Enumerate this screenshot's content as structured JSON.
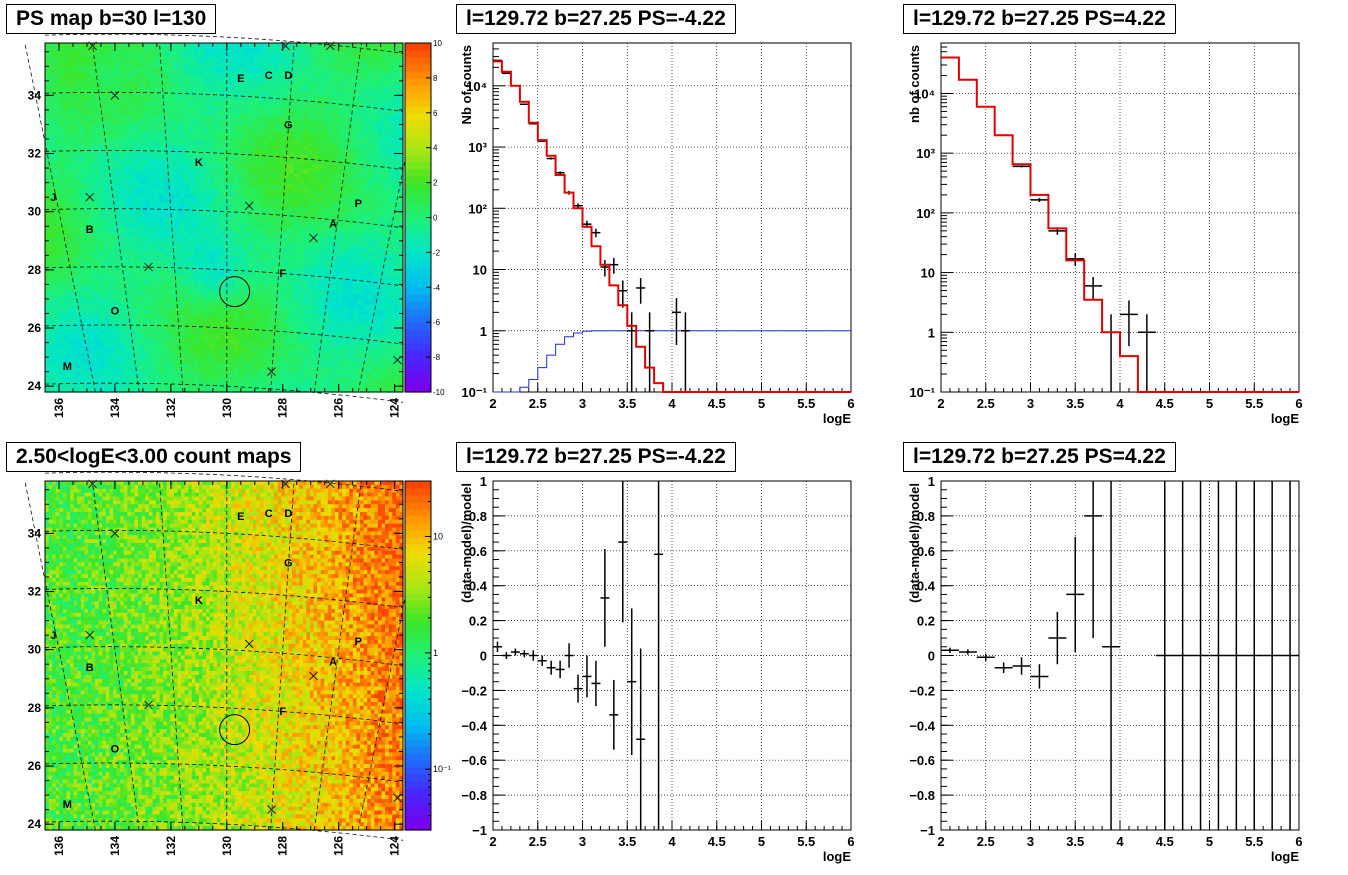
{
  "chart_data": [
    {
      "id": "ps_map",
      "type": "heatmap",
      "title": "PS map b=30 l=130",
      "x_range": [
        136.5,
        123.7
      ],
      "y_range": [
        23.8,
        35.8
      ],
      "x_ticks": [
        136,
        134,
        132,
        130,
        128,
        126,
        124
      ],
      "y_ticks": [
        24,
        26,
        28,
        30,
        32,
        34
      ],
      "colorbar": {
        "min": -10,
        "max": 10,
        "ticks": [
          10,
          8,
          6,
          4,
          2,
          0,
          -2,
          -4,
          -6,
          -8,
          -10
        ]
      },
      "circle": {
        "l": 129.72,
        "b": 27.25
      },
      "sources": [
        {
          "name": "E",
          "l": 129.5,
          "b": 34.6
        },
        {
          "name": "C",
          "l": 128.5,
          "b": 34.7
        },
        {
          "name": "D",
          "l": 127.8,
          "b": 34.7
        },
        {
          "name": "G",
          "l": 127.8,
          "b": 33.0
        },
        {
          "name": "K",
          "l": 131.0,
          "b": 31.7
        },
        {
          "name": "J",
          "l": 136.2,
          "b": 30.5
        },
        {
          "name": "P",
          "l": 125.3,
          "b": 30.3
        },
        {
          "name": "B",
          "l": 134.9,
          "b": 29.4
        },
        {
          "name": "A",
          "l": 126.2,
          "b": 29.6
        },
        {
          "name": "F",
          "l": 128.0,
          "b": 27.9
        },
        {
          "name": "O",
          "l": 134.0,
          "b": 26.6
        },
        {
          "name": "M",
          "l": 135.7,
          "b": 24.7
        }
      ],
      "cross_marks": [
        {
          "l": 134.8,
          "b": 35.7
        },
        {
          "l": 127.9,
          "b": 35.7
        },
        {
          "l": 126.3,
          "b": 35.7
        },
        {
          "l": 134.0,
          "b": 34.0
        },
        {
          "l": 134.9,
          "b": 30.5
        },
        {
          "l": 129.2,
          "b": 30.2
        },
        {
          "l": 126.9,
          "b": 29.1
        },
        {
          "l": 132.8,
          "b": 28.1
        },
        {
          "l": 128.4,
          "b": 24.5
        },
        {
          "l": 123.9,
          "b": 24.9
        }
      ]
    },
    {
      "id": "spec_left",
      "type": "line",
      "title": "l=129.72 b=27.25 PS=-4.22",
      "xlabel": "logE",
      "ylabel": "Nb of counts",
      "log_y": true,
      "xlim": [
        2,
        6
      ],
      "ylim": [
        0.1,
        50000
      ],
      "x_ticks": [
        2,
        2.5,
        3,
        3.5,
        4,
        4.5,
        5,
        5.5,
        6
      ],
      "y_ticks": [
        0.1,
        1,
        10,
        100,
        1000,
        10000
      ],
      "y_tick_labels": [
        "10⁻¹",
        "1",
        "10",
        "10²",
        "10³",
        "10⁴"
      ],
      "bin_width": 0.1,
      "model": [
        25000,
        17000,
        10000,
        5500,
        2500,
        1300,
        720,
        350,
        180,
        100,
        50,
        24,
        12,
        5.5,
        2.6,
        1.2,
        0.55,
        0.25,
        0.14,
        0.1,
        0.1,
        0.1,
        0.1,
        0.1,
        0.1,
        0.1,
        0.1,
        0.1,
        0.1,
        0.1,
        0.1,
        0.1,
        0.1,
        0.1,
        0.1,
        0.1,
        0.1,
        0.1,
        0.1,
        0.1
      ],
      "baseline": [
        0.1,
        0.1,
        0.1,
        0.12,
        0.16,
        0.25,
        0.4,
        0.6,
        0.8,
        0.92,
        0.98,
        1,
        1,
        1,
        1,
        1,
        1,
        1,
        1,
        1,
        1,
        1,
        1,
        1,
        1,
        1,
        1,
        1,
        1,
        1,
        1,
        1,
        1,
        1,
        1,
        1,
        1,
        1,
        1,
        1
      ],
      "points": [
        {
          "x": 2.05,
          "y": 26000
        },
        {
          "x": 2.15,
          "y": 16000
        },
        {
          "x": 2.25,
          "y": 10000
        },
        {
          "x": 2.35,
          "y": 5000
        },
        {
          "x": 2.45,
          "y": 2400
        },
        {
          "x": 2.55,
          "y": 1250
        },
        {
          "x": 2.65,
          "y": 650
        },
        {
          "x": 2.75,
          "y": 380
        },
        {
          "x": 2.85,
          "y": 180
        },
        {
          "x": 2.95,
          "y": 110
        },
        {
          "x": 3.05,
          "y": 55
        },
        {
          "x": 3.15,
          "y": 40
        },
        {
          "x": 3.25,
          "y": 11
        },
        {
          "x": 3.35,
          "y": 12
        },
        {
          "x": 3.45,
          "y": 4.5
        },
        {
          "x": 3.55,
          "y": 1
        },
        {
          "x": 3.65,
          "y": 5
        },
        {
          "x": 3.75,
          "y": 1
        },
        {
          "x": 4.05,
          "y": 2
        },
        {
          "x": 4.15,
          "y": 1
        }
      ]
    },
    {
      "id": "spec_right",
      "type": "line",
      "title": "l=129.72 b=27.25 PS=4.22",
      "xlabel": "logE",
      "ylabel": "nb of counts",
      "log_y": true,
      "xlim": [
        2,
        6
      ],
      "ylim": [
        0.1,
        70000
      ],
      "x_ticks": [
        2,
        2.5,
        3,
        3.5,
        4,
        4.5,
        5,
        5.5,
        6
      ],
      "y_ticks": [
        0.1,
        1,
        10,
        100,
        1000,
        10000
      ],
      "y_tick_labels": [
        "10⁻¹",
        "1",
        "10",
        "10²",
        "10³",
        "10⁴"
      ],
      "bin_width": 0.2,
      "model": [
        40000,
        17000,
        6000,
        2000,
        650,
        200,
        55,
        16,
        3.5,
        1,
        0.4,
        0.1,
        0.1,
        0.1,
        0.1,
        0.1,
        0.1,
        0.1,
        0.1,
        0.1
      ],
      "points": [
        {
          "x": 2.1,
          "y": 40000
        },
        {
          "x": 2.3,
          "y": 17000
        },
        {
          "x": 2.5,
          "y": 6000
        },
        {
          "x": 2.7,
          "y": 2000
        },
        {
          "x": 2.9,
          "y": 600
        },
        {
          "x": 3.1,
          "y": 165
        },
        {
          "x": 3.3,
          "y": 50
        },
        {
          "x": 3.5,
          "y": 17
        },
        {
          "x": 3.7,
          "y": 6
        },
        {
          "x": 3.9,
          "y": 1
        },
        {
          "x": 4.1,
          "y": 2
        },
        {
          "x": 4.3,
          "y": 1
        }
      ]
    },
    {
      "id": "count_map",
      "type": "heatmap",
      "title": "2.50<logE<3.00 count maps",
      "x_range": [
        136.5,
        123.7
      ],
      "y_range": [
        23.8,
        35.8
      ],
      "x_ticks": [
        136,
        134,
        132,
        130,
        128,
        126,
        124
      ],
      "y_ticks": [
        24,
        26,
        28,
        30,
        32,
        34
      ],
      "colorbar": {
        "log": true,
        "min": 0.03,
        "max": 30,
        "ticks": [
          10,
          1,
          0.1
        ],
        "tick_labels": [
          "10",
          "1",
          "10⁻¹"
        ]
      }
    },
    {
      "id": "resid_left",
      "type": "scatter",
      "title": "l=129.72 b=27.25 PS=-4.22",
      "xlabel": "logE",
      "ylabel": "(data-model)/model",
      "xlim": [
        2,
        6
      ],
      "ylim": [
        -1,
        1
      ],
      "x_ticks": [
        2,
        2.5,
        3,
        3.5,
        4,
        4.5,
        5,
        5.5,
        6
      ],
      "y_ticks": [
        -1,
        -0.8,
        -0.6,
        -0.4,
        -0.2,
        0,
        0.2,
        0.4,
        0.6,
        0.8,
        1
      ],
      "points": [
        {
          "x": 2.05,
          "y": 0.05,
          "err": 0.03
        },
        {
          "x": 2.15,
          "y": 0.0,
          "err": 0.02
        },
        {
          "x": 2.25,
          "y": 0.02,
          "err": 0.02
        },
        {
          "x": 2.35,
          "y": 0.01,
          "err": 0.02
        },
        {
          "x": 2.45,
          "y": 0.0,
          "err": 0.03
        },
        {
          "x": 2.55,
          "y": -0.03,
          "err": 0.03
        },
        {
          "x": 2.65,
          "y": -0.07,
          "err": 0.04
        },
        {
          "x": 2.75,
          "y": -0.08,
          "err": 0.05
        },
        {
          "x": 2.85,
          "y": 0.0,
          "err": 0.07
        },
        {
          "x": 2.95,
          "y": -0.19,
          "err": 0.08
        },
        {
          "x": 3.05,
          "y": -0.12,
          "err": 0.12
        },
        {
          "x": 3.15,
          "y": -0.16,
          "err": 0.13
        },
        {
          "x": 3.25,
          "y": 0.33,
          "err": 0.28
        },
        {
          "x": 3.35,
          "y": -0.34,
          "err": 0.2
        },
        {
          "x": 3.45,
          "y": 0.65,
          "err": 0.46
        },
        {
          "x": 3.55,
          "y": -0.15,
          "err": 0.42
        },
        {
          "x": 3.65,
          "y": -0.48,
          "err": 0.52
        },
        {
          "x": 3.85,
          "y": 0.58,
          "err": 1.6
        }
      ]
    },
    {
      "id": "resid_right",
      "type": "scatter",
      "title": "l=129.72 b=27.25 PS=4.22",
      "xlabel": "logE",
      "ylabel": "(data-model)/model",
      "xlim": [
        2,
        6
      ],
      "ylim": [
        -1,
        1
      ],
      "x_ticks": [
        2,
        2.5,
        3,
        3.5,
        4,
        4.5,
        5,
        5.5,
        6
      ],
      "y_ticks": [
        -1,
        -0.8,
        -0.6,
        -0.4,
        -0.2,
        0,
        0.2,
        0.4,
        0.6,
        0.8,
        1
      ],
      "points": [
        {
          "x": 2.1,
          "y": 0.03,
          "err": 0.015
        },
        {
          "x": 2.3,
          "y": 0.02,
          "err": 0.015
        },
        {
          "x": 2.5,
          "y": -0.01,
          "err": 0.02
        },
        {
          "x": 2.7,
          "y": -0.07,
          "err": 0.03
        },
        {
          "x": 2.9,
          "y": -0.06,
          "err": 0.05
        },
        {
          "x": 3.1,
          "y": -0.12,
          "err": 0.07
        },
        {
          "x": 3.3,
          "y": 0.1,
          "err": 0.15
        },
        {
          "x": 3.5,
          "y": 0.35,
          "err": 0.33
        },
        {
          "x": 3.7,
          "y": 0.8,
          "err": 0.7
        },
        {
          "x": 3.9,
          "y": 0.05,
          "err": 1.2
        },
        {
          "x": 4.5,
          "y": 0,
          "err": 2
        },
        {
          "x": 4.7,
          "y": 0,
          "err": 2
        },
        {
          "x": 4.9,
          "y": 0,
          "err": 2
        },
        {
          "x": 5.1,
          "y": 0,
          "err": 2
        },
        {
          "x": 5.3,
          "y": 0,
          "err": 2
        },
        {
          "x": 5.5,
          "y": 0,
          "err": 2
        },
        {
          "x": 5.7,
          "y": 0,
          "err": 2
        },
        {
          "x": 5.9,
          "y": 0,
          "err": 2
        }
      ]
    }
  ]
}
